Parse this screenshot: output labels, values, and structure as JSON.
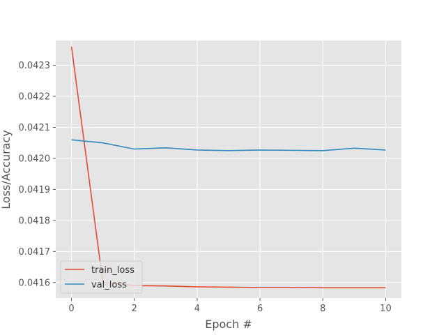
{
  "chart_data": {
    "type": "line",
    "xlabel": "Epoch #",
    "ylabel": "Loss/Accuracy",
    "x": [
      0,
      1,
      2,
      3,
      4,
      5,
      6,
      7,
      8,
      9,
      10
    ],
    "series": [
      {
        "name": "train_loss",
        "color": "#e24a33",
        "values": [
          0.04236,
          0.0416,
          0.04159,
          0.041589,
          0.041586,
          0.041585,
          0.041584,
          0.041584,
          0.041583,
          0.041583,
          0.041583
        ]
      },
      {
        "name": "val_loss",
        "color": "#348abd",
        "values": [
          0.04206,
          0.04205,
          0.04203,
          0.042034,
          0.042027,
          0.042025,
          0.042027,
          0.042026,
          0.042025,
          0.042033,
          0.042027
        ]
      }
    ],
    "xlim": [
      -0.5,
      10.5
    ],
    "ylim": [
      0.04155,
      0.04238
    ],
    "xticks": [
      0,
      2,
      4,
      6,
      8,
      10
    ],
    "xtick_labels": [
      "0",
      "2",
      "4",
      "6",
      "8",
      "10"
    ],
    "yticks": [
      0.0416,
      0.0417,
      0.0418,
      0.0419,
      0.042,
      0.0421,
      0.0422,
      0.0423
    ],
    "ytick_labels": [
      "0.0416",
      "0.0417",
      "0.0418",
      "0.0419",
      "0.0420",
      "0.0421",
      "0.0422",
      "0.0423"
    ],
    "grid": true,
    "legend": "lower-left",
    "colors": {
      "plot_background": "#e5e5e5",
      "grid": "#ffffff",
      "tick_text": "#555555"
    }
  }
}
